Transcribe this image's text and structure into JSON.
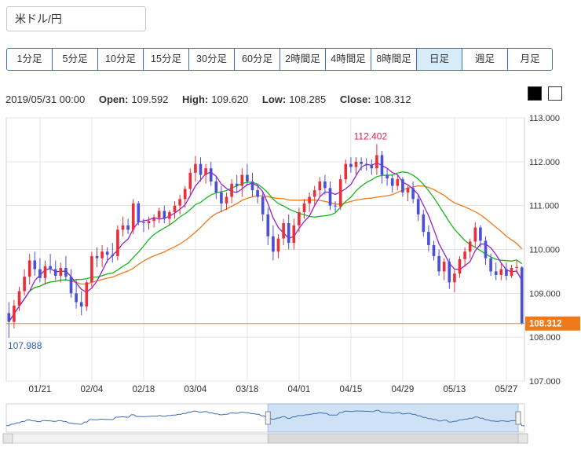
{
  "pair_label": "米ドル/円",
  "timeframes": [
    {
      "label": "1分足",
      "active": false,
      "w": 58
    },
    {
      "label": "5分足",
      "active": false,
      "w": 58
    },
    {
      "label": "10分足",
      "active": false,
      "w": 58
    },
    {
      "label": "15分足",
      "active": false,
      "w": 58
    },
    {
      "label": "30分足",
      "active": false,
      "w": 58
    },
    {
      "label": "60分足",
      "active": false,
      "w": 58
    },
    {
      "label": "2時間足",
      "active": false,
      "w": 58
    },
    {
      "label": "4時間足",
      "active": false,
      "w": 58
    },
    {
      "label": "8時間足",
      "active": false,
      "w": 58
    },
    {
      "label": "日足",
      "active": true,
      "w": 58
    },
    {
      "label": "週足",
      "active": false,
      "w": 58
    },
    {
      "label": "月足",
      "active": false,
      "w": 56
    }
  ],
  "ohlc": {
    "date": "2019/05/31 00:00",
    "open_label": "Open:",
    "open": "109.592",
    "high_label": "High:",
    "high": "109.620",
    "low_label": "Low:",
    "low": "108.285",
    "close_label": "Close:",
    "close": "108.312"
  },
  "colors": {
    "up": "#e8303a",
    "down": "#4a4fd6",
    "ma_short": "#9b1fd1",
    "ma_mid": "#16b81c",
    "ma_long": "#f07a1a",
    "price_line": "#f07a1a",
    "high_label": "#e01e4a",
    "low_label": "#2a5fc0"
  },
  "chart_data": {
    "type": "candlestick",
    "ylim": [
      107.0,
      113.0
    ],
    "y_ticks": [
      "113.000",
      "112.000",
      "111.000",
      "110.000",
      "109.000",
      "108.000",
      "107.000"
    ],
    "x_ticks": [
      {
        "label": "01/21",
        "index": 6
      },
      {
        "label": "02/04",
        "index": 16
      },
      {
        "label": "02/18",
        "index": 26
      },
      {
        "label": "03/04",
        "index": 36
      },
      {
        "label": "03/18",
        "index": 46
      },
      {
        "label": "04/01",
        "index": 56
      },
      {
        "label": "04/15",
        "index": 66
      },
      {
        "label": "04/29",
        "index": 76
      },
      {
        "label": "05/13",
        "index": 86
      },
      {
        "label": "05/27",
        "index": 96
      }
    ],
    "max_annotation": {
      "label": "112.402",
      "index": 71,
      "value": 112.402
    },
    "min_annotation": {
      "label": "107.988",
      "index": 0,
      "value": 107.988
    },
    "last_price": {
      "label": "108.312",
      "value": 108.312
    },
    "candles": [
      [
        108.55,
        108.8,
        107.99,
        108.35
      ],
      [
        108.35,
        108.85,
        108.2,
        108.72
      ],
      [
        108.72,
        109.15,
        108.6,
        109.05
      ],
      [
        109.05,
        109.55,
        108.95,
        109.38
      ],
      [
        109.38,
        109.9,
        109.2,
        109.75
      ],
      [
        109.75,
        109.95,
        109.4,
        109.55
      ],
      [
        109.55,
        109.8,
        109.25,
        109.35
      ],
      [
        109.35,
        109.75,
        109.2,
        109.62
      ],
      [
        109.62,
        109.9,
        109.45,
        109.55
      ],
      [
        109.55,
        109.75,
        109.3,
        109.4
      ],
      [
        109.4,
        109.7,
        109.25,
        109.58
      ],
      [
        109.58,
        109.85,
        109.3,
        109.38
      ],
      [
        109.38,
        109.55,
        108.9,
        109.0
      ],
      [
        109.0,
        109.3,
        108.65,
        108.8
      ],
      [
        108.8,
        109.05,
        108.5,
        108.7
      ],
      [
        108.7,
        109.3,
        108.6,
        109.25
      ],
      [
        109.25,
        109.95,
        109.1,
        109.85
      ],
      [
        109.85,
        110.05,
        109.6,
        109.8
      ],
      [
        109.8,
        110.1,
        109.6,
        109.95
      ],
      [
        109.95,
        110.05,
        109.7,
        109.88
      ],
      [
        109.88,
        110.15,
        109.7,
        109.85
      ],
      [
        109.85,
        110.55,
        109.75,
        110.45
      ],
      [
        110.45,
        110.75,
        110.3,
        110.55
      ],
      [
        110.55,
        110.7,
        110.35,
        110.45
      ],
      [
        110.45,
        111.15,
        110.35,
        111.05
      ],
      [
        111.05,
        111.1,
        110.55,
        110.62
      ],
      [
        110.62,
        110.7,
        110.4,
        110.6
      ],
      [
        110.6,
        110.75,
        110.45,
        110.65
      ],
      [
        110.65,
        110.8,
        110.5,
        110.72
      ],
      [
        110.72,
        110.95,
        110.6,
        110.88
      ],
      [
        110.88,
        111.0,
        110.6,
        110.7
      ],
      [
        110.7,
        110.9,
        110.55,
        110.85
      ],
      [
        110.85,
        111.1,
        110.7,
        111.0
      ],
      [
        111.0,
        111.25,
        110.8,
        111.15
      ],
      [
        111.15,
        111.45,
        110.95,
        111.38
      ],
      [
        111.38,
        111.85,
        111.2,
        111.75
      ],
      [
        111.75,
        112.13,
        111.55,
        111.95
      ],
      [
        111.95,
        112.1,
        111.55,
        111.7
      ],
      [
        111.7,
        111.95,
        111.5,
        111.85
      ],
      [
        111.85,
        112.0,
        111.45,
        111.55
      ],
      [
        111.55,
        111.65,
        111.15,
        111.3
      ],
      [
        111.3,
        111.45,
        110.85,
        111.05
      ],
      [
        111.05,
        111.3,
        110.9,
        111.2
      ],
      [
        111.2,
        111.6,
        111.05,
        111.5
      ],
      [
        111.5,
        111.7,
        111.3,
        111.45
      ],
      [
        111.45,
        111.85,
        111.2,
        111.7
      ],
      [
        111.7,
        111.95,
        111.45,
        111.55
      ],
      [
        111.55,
        111.75,
        111.2,
        111.35
      ],
      [
        111.35,
        111.5,
        111.05,
        111.2
      ],
      [
        111.2,
        111.3,
        110.65,
        110.8
      ],
      [
        110.8,
        110.95,
        110.1,
        110.3
      ],
      [
        110.3,
        110.55,
        109.75,
        109.95
      ],
      [
        109.95,
        110.35,
        109.8,
        110.25
      ],
      [
        110.25,
        110.7,
        110.1,
        110.6
      ],
      [
        110.6,
        110.8,
        110.0,
        110.15
      ],
      [
        110.15,
        110.7,
        110.0,
        110.55
      ],
      [
        110.55,
        110.95,
        110.4,
        110.85
      ],
      [
        110.85,
        111.15,
        110.7,
        111.05
      ],
      [
        111.05,
        111.3,
        110.85,
        111.2
      ],
      [
        111.2,
        111.45,
        111.0,
        111.35
      ],
      [
        111.35,
        111.65,
        111.2,
        111.55
      ],
      [
        111.55,
        111.7,
        111.25,
        111.4
      ],
      [
        111.4,
        111.55,
        110.9,
        111.0
      ],
      [
        111.0,
        111.1,
        110.85,
        110.98
      ],
      [
        110.98,
        111.7,
        110.9,
        111.6
      ],
      [
        111.6,
        112.05,
        111.5,
        111.95
      ],
      [
        111.95,
        112.1,
        111.75,
        111.88
      ],
      [
        111.88,
        112.1,
        111.7,
        112.0
      ],
      [
        112.0,
        112.1,
        111.8,
        111.95
      ],
      [
        111.95,
        112.08,
        111.8,
        111.92
      ],
      [
        111.92,
        112.05,
        111.7,
        111.85
      ],
      [
        111.85,
        112.402,
        111.7,
        112.15
      ],
      [
        112.15,
        112.25,
        111.5,
        111.7
      ],
      [
        111.7,
        111.85,
        111.45,
        111.62
      ],
      [
        111.62,
        111.7,
        111.3,
        111.45
      ],
      [
        111.45,
        111.7,
        111.35,
        111.6
      ],
      [
        111.6,
        111.65,
        111.2,
        111.3
      ],
      [
        111.3,
        111.45,
        111.1,
        111.4
      ],
      [
        111.4,
        111.55,
        111.05,
        111.15
      ],
      [
        111.15,
        111.25,
        110.65,
        110.8
      ],
      [
        110.8,
        110.9,
        110.3,
        110.4
      ],
      [
        110.4,
        110.55,
        109.95,
        110.1
      ],
      [
        110.1,
        110.2,
        109.75,
        109.85
      ],
      [
        109.85,
        110.0,
        109.4,
        109.5
      ],
      [
        109.5,
        109.8,
        109.3,
        109.72
      ],
      [
        109.72,
        109.8,
        109.1,
        109.25
      ],
      [
        109.25,
        109.55,
        109.02,
        109.45
      ],
      [
        109.45,
        109.85,
        109.35,
        109.78
      ],
      [
        109.78,
        110.05,
        109.6,
        109.95
      ],
      [
        109.95,
        110.25,
        109.8,
        110.18
      ],
      [
        110.18,
        110.62,
        110.05,
        110.5
      ],
      [
        110.5,
        110.55,
        110.05,
        110.2
      ],
      [
        110.2,
        110.3,
        109.65,
        109.8
      ],
      [
        109.8,
        109.9,
        109.4,
        109.5
      ],
      [
        109.5,
        109.7,
        109.3,
        109.42
      ],
      [
        109.42,
        109.7,
        109.3,
        109.55
      ],
      [
        109.55,
        109.7,
        109.3,
        109.4
      ],
      [
        109.4,
        109.65,
        109.35,
        109.58
      ],
      [
        109.58,
        109.75,
        109.45,
        109.6
      ],
      [
        109.592,
        109.62,
        108.285,
        108.312
      ]
    ]
  }
}
